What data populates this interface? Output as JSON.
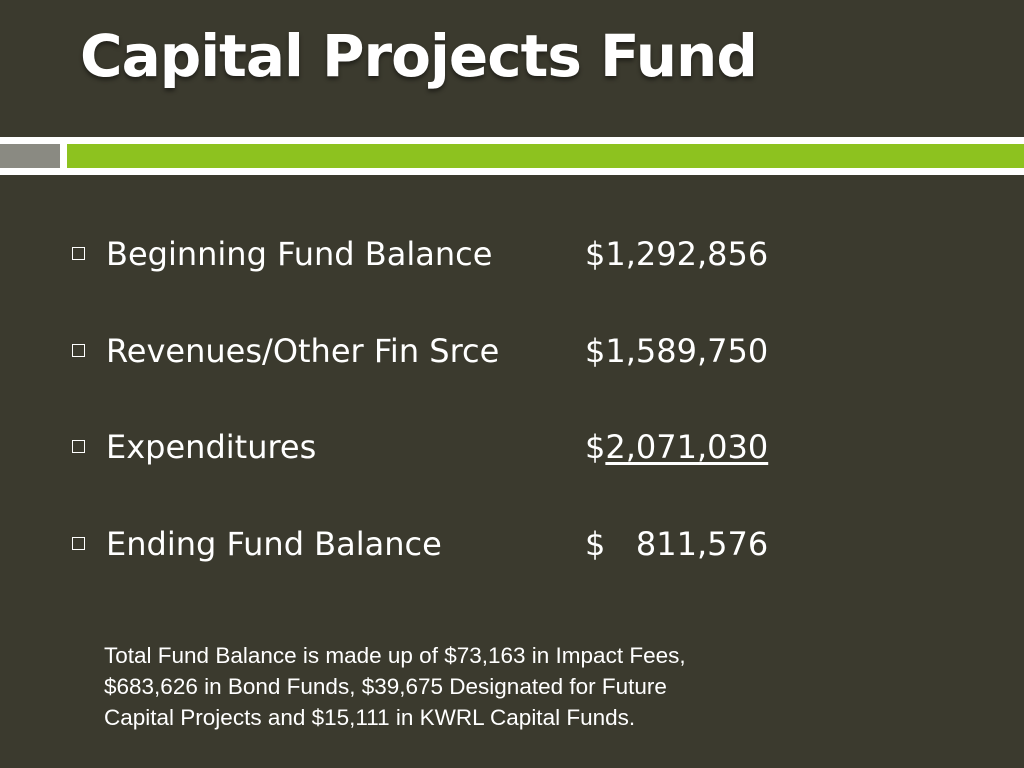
{
  "slide": {
    "title": "Capital Projects Fund",
    "colors": {
      "background": "#3b3a2e",
      "accent_green": "#8dc21f",
      "accent_gray": "#8a8a82",
      "text": "#ffffff"
    }
  },
  "items": [
    {
      "label": "Beginning Fund Balance",
      "value_prefix": "$",
      "value": "1,292,856",
      "underlined": false
    },
    {
      "label": "Revenues/Other Fin Srce",
      "value_prefix": "$",
      "value": "1,589,750",
      "underlined": false
    },
    {
      "label": "Expenditures",
      "value_prefix": "$",
      "value": "2,071,030",
      "underlined": true
    },
    {
      "label": "Ending Fund Balance",
      "value_prefix": "$",
      "value": "   811,576",
      "underlined": false
    }
  ],
  "note": {
    "line1": "Total Fund Balance is made up of $73,163 in Impact Fees,",
    "line2": "$683,626 in Bond Funds, $39,675 Designated for Future",
    "line3": "Capital Projects and $15,111 in KWRL Capital Funds."
  }
}
